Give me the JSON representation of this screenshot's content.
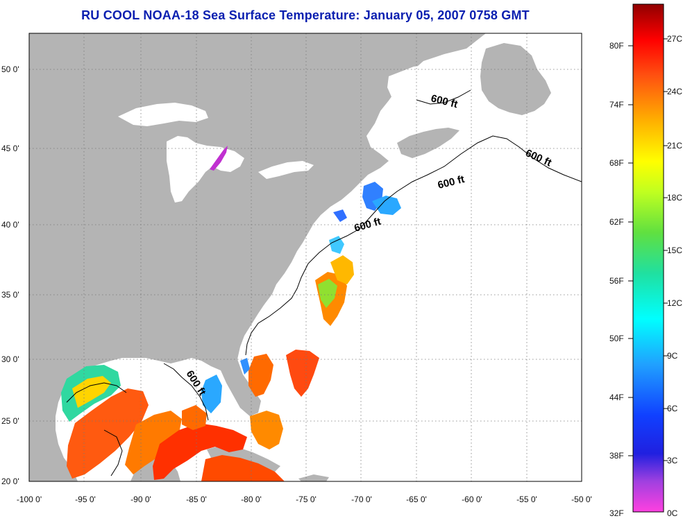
{
  "title": "RU COOL  NOAA-18  Sea Surface Temperature:  January 05, 2007 0758 GMT",
  "map": {
    "lon_ticks": [
      "-100 0'",
      "-95 0'",
      "-90 0'",
      "-85 0'",
      "-80 0'",
      "-75 0'",
      "-70 0'",
      "-65 0'",
      "-60 0'",
      "-55 0'",
      "-50 0'"
    ],
    "lat_ticks": [
      "50 0'",
      "45 0'",
      "40 0'",
      "35 0'",
      "30 0'",
      "25 0'",
      "20 0'"
    ],
    "contour_labels": [
      "600 ft",
      "600 ft",
      "600 ft",
      "600 ft",
      "600 ft"
    ],
    "colors": {
      "land": "#b4b4b4",
      "water": "#ffffff",
      "contour": "#000000"
    }
  },
  "colorbar": {
    "fahrenheit_ticks": [
      "80F",
      "74F",
      "68F",
      "62F",
      "56F",
      "50F",
      "44F",
      "38F",
      "32F"
    ],
    "celsius_ticks": [
      "27C",
      "24C",
      "21C",
      "18C",
      "15C",
      "12C",
      "9C",
      "6C",
      "3C",
      "0C"
    ]
  }
}
